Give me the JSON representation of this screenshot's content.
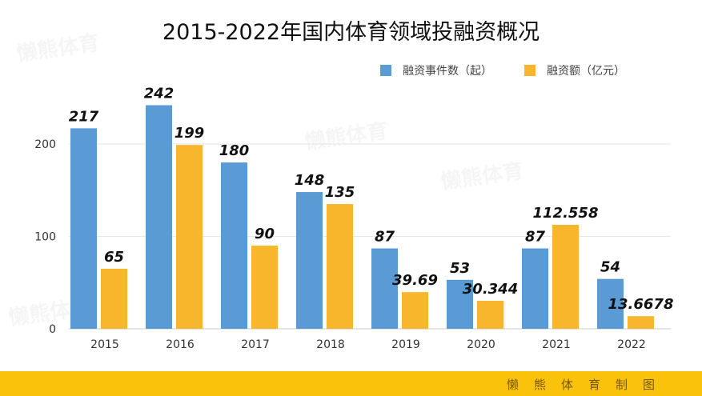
{
  "chart_data": {
    "type": "bar",
    "title": "2015-2022年国内体育领域投融资概况",
    "categories": [
      "2015",
      "2016",
      "2017",
      "2018",
      "2019",
      "2020",
      "2021",
      "2022"
    ],
    "series": [
      {
        "name": "融资事件数（起）",
        "color": "#5b9bd5",
        "values": [
          217,
          242,
          180,
          148,
          87,
          53,
          87,
          54
        ],
        "labels": [
          "217",
          "242",
          "180",
          "148",
          "87",
          "53",
          "87",
          "54"
        ]
      },
      {
        "name": "融资额（亿元）",
        "color": "#f8b62d",
        "values": [
          65,
          199,
          90,
          135,
          39.69,
          30.344,
          112.558,
          13.6678
        ],
        "labels": [
          "65",
          "199",
          "90",
          "135",
          "39.69",
          "30.344",
          "112.558",
          "13.6678"
        ]
      }
    ],
    "yticks": [
      "0",
      "100",
      "200"
    ],
    "ylim": [
      0,
      260
    ],
    "grid": true,
    "legend": "top-right",
    "xlabel": "",
    "ylabel": ""
  },
  "footer": "懒熊体育制图",
  "watermark": "懒熊体育"
}
